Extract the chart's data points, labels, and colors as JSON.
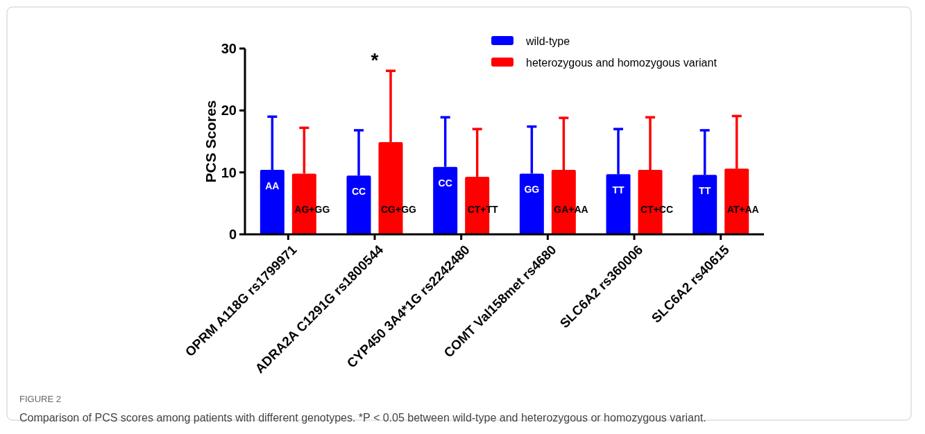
{
  "chart_data": {
    "type": "bar",
    "ylabel": "PCS Scores",
    "categories": [
      "OPRM A118G rs1799971",
      "ADRA2A C1291G rs1800544",
      "CYP450 3A4*1G rs2242480",
      "COMT Val158met rs4680",
      "SLC6A2 rs360006",
      "SLC6A2 rs40615"
    ],
    "series": [
      {
        "name": "wild-type",
        "color": "#0000ff",
        "values": [
          10.4,
          9.5,
          10.9,
          9.8,
          9.7,
          9.6
        ],
        "errors": [
          [
            10.4,
            19.0
          ],
          [
            9.5,
            16.8
          ],
          [
            10.9,
            18.9
          ],
          [
            9.8,
            17.4
          ],
          [
            9.7,
            17.0
          ],
          [
            9.6,
            16.8
          ]
        ],
        "value_labels": [
          "AA",
          "CC",
          "CC",
          "GG",
          "TT",
          "TT"
        ]
      },
      {
        "name": "heterozygous and homozygous variant",
        "color": "#ff0000",
        "values": [
          9.8,
          14.9,
          9.3,
          10.4,
          10.4,
          10.6
        ],
        "errors": [
          [
            9.8,
            17.2
          ],
          [
            14.9,
            26.4
          ],
          [
            9.3,
            17.0
          ],
          [
            10.4,
            18.8
          ],
          [
            10.4,
            18.9
          ],
          [
            10.6,
            19.1
          ]
        ],
        "value_labels": [
          "AG+GG",
          "CG+GG",
          "CT+TT",
          "GA+AA",
          "CT+CC",
          "AT+AA"
        ]
      }
    ],
    "ylim": [
      0,
      30
    ],
    "yticks": [
      0,
      10,
      20,
      30
    ],
    "grid": false,
    "legend": "top right",
    "annotations": [
      "*",
      "FIGURE 2",
      "Comparison of PCS scores among patients with different genotypes. *P < 0.05 between wild-type and heterozygous or homozygous variant."
    ]
  }
}
